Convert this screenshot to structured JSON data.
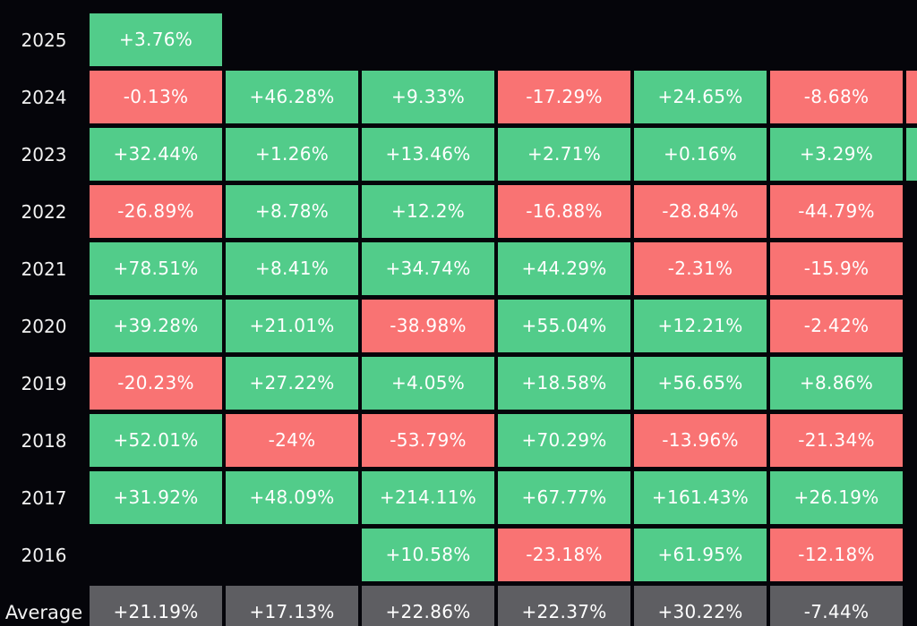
{
  "chart_data": {
    "type": "heatmap",
    "title": "",
    "row_labels": [
      "2025",
      "2024",
      "2023",
      "2022",
      "2021",
      "2020",
      "2019",
      "2018",
      "2017",
      "2016",
      "Average"
    ],
    "column_labels": [],
    "rows": [
      {
        "label": "2025",
        "values": [
          "+3.76%",
          null,
          null,
          null,
          null,
          null,
          null
        ]
      },
      {
        "label": "2024",
        "values": [
          "-0.13%",
          "+46.28%",
          "+9.33%",
          "-17.29%",
          "+24.65%",
          "-8.68%",
          null
        ]
      },
      {
        "label": "2023",
        "values": [
          "+32.44%",
          "+1.26%",
          "+13.46%",
          "+2.71%",
          "+0.16%",
          "+3.29%",
          null
        ]
      },
      {
        "label": "2022",
        "values": [
          "-26.89%",
          "+8.78%",
          "+12.2%",
          "-16.88%",
          "-28.84%",
          "-44.79%",
          null
        ]
      },
      {
        "label": "2021",
        "values": [
          "+78.51%",
          "+8.41%",
          "+34.74%",
          "+44.29%",
          "-2.31%",
          "-15.9%",
          null
        ]
      },
      {
        "label": "2020",
        "values": [
          "+39.28%",
          "+21.01%",
          "-38.98%",
          "+55.04%",
          "+12.21%",
          "-2.42%",
          null
        ]
      },
      {
        "label": "2019",
        "values": [
          "-20.23%",
          "+27.22%",
          "+4.05%",
          "+18.58%",
          "+56.65%",
          "+8.86%",
          null
        ]
      },
      {
        "label": "2018",
        "values": [
          "+52.01%",
          "-24%",
          "-53.79%",
          "+70.29%",
          "-13.96%",
          "-21.34%",
          null
        ]
      },
      {
        "label": "2017",
        "values": [
          "+31.92%",
          "+48.09%",
          "+214.11%",
          "+67.77%",
          "+161.43%",
          "+26.19%",
          null
        ]
      },
      {
        "label": "2016",
        "values": [
          null,
          null,
          "+10.58%",
          "-23.18%",
          "+61.95%",
          "-12.18%",
          null
        ]
      },
      {
        "label": "Average",
        "values": [
          "+21.19%",
          "+17.13%",
          "+22.86%",
          "+22.37%",
          "+30.22%",
          "-7.44%",
          null
        ]
      }
    ],
    "partial_column_colors": [
      "",
      "#f97373",
      "#52cc8a",
      "",
      "",
      "",
      "",
      "",
      "",
      "",
      ""
    ],
    "colors": {
      "positive": "#52cc8a",
      "negative": "#f97373",
      "average": "#5e5e62",
      "background": "#05050a"
    }
  }
}
